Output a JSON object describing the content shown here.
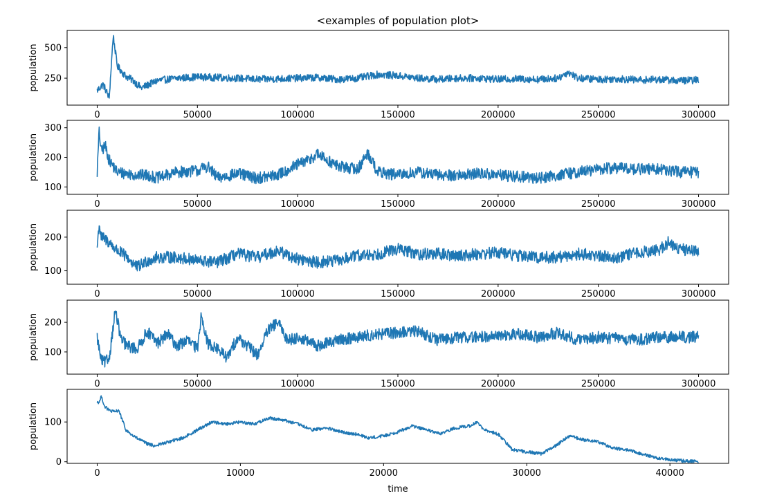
{
  "chart_data": {
    "title": "<examples of population plot>",
    "xlabel": "time",
    "line_color": "#1f77b4",
    "panels": [
      {
        "type": "line",
        "ylabel": "population",
        "xlim": [
          -15000,
          315000
        ],
        "ylim": [
          30,
          640
        ],
        "xticks": [
          0,
          50000,
          100000,
          150000,
          200000,
          250000,
          300000
        ],
        "yticks": [
          250,
          500
        ],
        "noise": 30,
        "x": [
          0,
          3000,
          6000,
          8000,
          10000,
          14000,
          18000,
          22000,
          26000,
          30000,
          40000,
          50000,
          60000,
          70000,
          80000,
          90000,
          100000,
          110000,
          120000,
          130000,
          140000,
          150000,
          160000,
          170000,
          180000,
          190000,
          200000,
          210000,
          220000,
          230000,
          235000,
          240000,
          250000,
          260000,
          270000,
          280000,
          290000,
          300000
        ],
        "y": [
          150,
          200,
          90,
          600,
          350,
          270,
          230,
          170,
          200,
          230,
          250,
          260,
          255,
          250,
          240,
          245,
          250,
          255,
          240,
          250,
          280,
          270,
          250,
          240,
          250,
          250,
          240,
          245,
          240,
          250,
          300,
          250,
          240,
          245,
          235,
          240,
          230,
          235
        ]
      },
      {
        "type": "line",
        "ylabel": "population",
        "xlim": [
          -15000,
          315000
        ],
        "ylim": [
          75,
          325
        ],
        "xticks": [
          0,
          50000,
          100000,
          150000,
          200000,
          250000,
          300000
        ],
        "yticks": [
          100,
          200,
          300
        ],
        "noise": 20,
        "x": [
          0,
          1000,
          2000,
          4000,
          6000,
          10000,
          15000,
          20000,
          25000,
          30000,
          40000,
          50000,
          55000,
          60000,
          70000,
          80000,
          90000,
          100000,
          105000,
          110000,
          120000,
          130000,
          135000,
          140000,
          150000,
          160000,
          170000,
          180000,
          190000,
          200000,
          210000,
          220000,
          230000,
          240000,
          250000,
          260000,
          270000,
          280000,
          290000,
          300000
        ],
        "y": [
          150,
          290,
          220,
          240,
          190,
          150,
          145,
          140,
          140,
          130,
          150,
          155,
          170,
          130,
          145,
          130,
          140,
          175,
          190,
          210,
          170,
          160,
          215,
          150,
          140,
          150,
          140,
          140,
          145,
          140,
          135,
          130,
          140,
          150,
          160,
          165,
          160,
          160,
          150,
          150
        ]
      },
      {
        "type": "line",
        "ylabel": "population",
        "xlim": [
          -15000,
          315000
        ],
        "ylim": [
          60,
          280
        ],
        "xticks": [
          0,
          50000,
          100000,
          150000,
          200000,
          250000,
          300000
        ],
        "yticks": [
          100,
          200
        ],
        "noise": 18,
        "x": [
          0,
          1000,
          2000,
          5000,
          10000,
          15000,
          20000,
          25000,
          30000,
          40000,
          50000,
          60000,
          70000,
          80000,
          90000,
          100000,
          110000,
          120000,
          130000,
          140000,
          150000,
          160000,
          170000,
          180000,
          190000,
          200000,
          210000,
          220000,
          230000,
          240000,
          250000,
          260000,
          270000,
          280000,
          285000,
          290000,
          300000
        ],
        "y": [
          170,
          240,
          200,
          190,
          160,
          140,
          110,
          130,
          140,
          140,
          130,
          125,
          150,
          140,
          160,
          135,
          125,
          130,
          145,
          150,
          165,
          150,
          150,
          145,
          150,
          155,
          145,
          140,
          140,
          150,
          145,
          140,
          155,
          160,
          185,
          165,
          160
        ]
      },
      {
        "type": "line",
        "ylabel": "population",
        "xlim": [
          -15000,
          315000
        ],
        "ylim": [
          25,
          275
        ],
        "xticks": [
          0,
          50000,
          100000,
          150000,
          200000,
          250000,
          300000
        ],
        "yticks": [
          100,
          200
        ],
        "noise": 20,
        "x": [
          0,
          2000,
          4000,
          6000,
          9000,
          12000,
          15000,
          20000,
          25000,
          30000,
          35000,
          40000,
          45000,
          50000,
          52000,
          55000,
          60000,
          65000,
          70000,
          75000,
          80000,
          85000,
          90000,
          95000,
          100000,
          110000,
          120000,
          130000,
          140000,
          150000,
          160000,
          170000,
          180000,
          190000,
          200000,
          210000,
          220000,
          230000,
          240000,
          250000,
          260000,
          270000,
          280000,
          290000,
          300000
        ],
        "y": [
          150,
          70,
          65,
          80,
          240,
          140,
          120,
          110,
          170,
          130,
          160,
          120,
          140,
          110,
          230,
          130,
          110,
          80,
          150,
          120,
          90,
          170,
          200,
          140,
          150,
          120,
          140,
          150,
          160,
          165,
          170,
          140,
          150,
          150,
          155,
          160,
          150,
          165,
          140,
          150,
          145,
          140,
          150,
          150,
          150
        ]
      },
      {
        "type": "line",
        "ylabel": "population",
        "xlim": [
          -2100,
          44100
        ],
        "ylim": [
          -4,
          182
        ],
        "xticks": [
          0,
          10000,
          20000,
          30000,
          40000
        ],
        "yticks": [
          0,
          100
        ],
        "noise": 4,
        "x": [
          0,
          150,
          300,
          500,
          800,
          1200,
          1500,
          1700,
          2000,
          2500,
          3000,
          3500,
          4000,
          5000,
          6000,
          7000,
          8000,
          9000,
          10000,
          11000,
          12000,
          13000,
          14000,
          15000,
          16000,
          17000,
          18000,
          19000,
          20000,
          21000,
          22000,
          23000,
          24000,
          25000,
          26000,
          26500,
          27000,
          28000,
          29000,
          30000,
          31000,
          32000,
          33000,
          34000,
          35000,
          36000,
          37000,
          38000,
          39000,
          40000,
          41000,
          42000
        ],
        "y": [
          150,
          150,
          165,
          140,
          130,
          125,
          130,
          110,
          80,
          65,
          55,
          45,
          40,
          50,
          60,
          80,
          100,
          95,
          100,
          95,
          110,
          105,
          95,
          80,
          85,
          75,
          70,
          60,
          65,
          75,
          90,
          80,
          70,
          85,
          90,
          100,
          80,
          70,
          30,
          25,
          20,
          40,
          65,
          55,
          50,
          35,
          30,
          20,
          10,
          5,
          2,
          1
        ]
      }
    ]
  }
}
